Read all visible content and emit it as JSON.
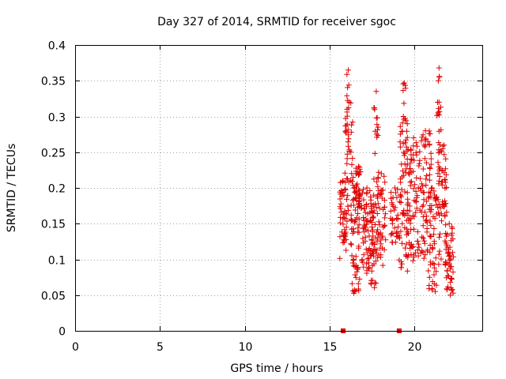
{
  "chart_data": {
    "type": "scatter",
    "title": "Day 327 of 2014, SRMTID for receiver sgoc",
    "xlabel": "GPS time / hours",
    "ylabel": "SRMTID / TECUs",
    "xlim": [
      0,
      24
    ],
    "ylim": [
      0,
      0.4
    ],
    "xticks": [
      0,
      5,
      10,
      15,
      20
    ],
    "xtick_labels": [
      "0",
      "5",
      "10",
      "15",
      "20"
    ],
    "yticks": [
      0,
      0.05,
      0.1,
      0.15,
      0.2,
      0.25,
      0.3,
      0.35,
      0.4
    ],
    "ytick_labels": [
      "0",
      "0.05",
      "0.1",
      "0.15",
      "0.2",
      "0.25",
      "0.3",
      "0.35",
      "0.4"
    ],
    "grid": true,
    "marker": "+",
    "color": "#e00000",
    "zero_markers": [
      {
        "x": 15.8,
        "y": 0
      },
      {
        "x": 19.1,
        "y": 0
      }
    ],
    "series": [
      {
        "name": "SRMTID",
        "clusters": [
          {
            "x_range": [
              15.6,
              16.0
            ],
            "y_min": 0.1,
            "y_max": 0.21,
            "count": 40
          },
          {
            "x_range": [
              15.9,
              16.4
            ],
            "y_min": 0.12,
            "y_max": 0.32,
            "count": 55
          },
          {
            "x_range": [
              16.0,
              16.2
            ],
            "y_min": 0.3,
            "y_max": 0.365,
            "count": 6
          },
          {
            "x_range": [
              16.3,
              16.8
            ],
            "y_min": 0.05,
            "y_max": 0.22,
            "count": 55
          },
          {
            "x_range": [
              16.5,
              16.9
            ],
            "y_min": 0.17,
            "y_max": 0.23,
            "count": 30
          },
          {
            "x_range": [
              16.9,
              17.5
            ],
            "y_min": 0.08,
            "y_max": 0.2,
            "count": 60
          },
          {
            "x_range": [
              17.4,
              17.8
            ],
            "y_min": 0.06,
            "y_max": 0.19,
            "count": 45
          },
          {
            "x_range": [
              17.6,
              17.9
            ],
            "y_min": 0.2,
            "y_max": 0.335,
            "count": 20
          },
          {
            "x_range": [
              17.8,
              18.3
            ],
            "y_min": 0.09,
            "y_max": 0.22,
            "count": 45
          },
          {
            "x_range": [
              18.6,
              19.1
            ],
            "y_min": 0.12,
            "y_max": 0.2,
            "count": 35
          },
          {
            "x_range": [
              19.1,
              19.6
            ],
            "y_min": 0.08,
            "y_max": 0.3,
            "count": 70
          },
          {
            "x_range": [
              19.3,
              19.5
            ],
            "y_min": 0.3,
            "y_max": 0.347,
            "count": 5
          },
          {
            "x_range": [
              19.6,
              20.3
            ],
            "y_min": 0.09,
            "y_max": 0.27,
            "count": 70
          },
          {
            "x_range": [
              20.3,
              21.0
            ],
            "y_min": 0.1,
            "y_max": 0.28,
            "count": 70
          },
          {
            "x_range": [
              20.8,
              21.3
            ],
            "y_min": 0.05,
            "y_max": 0.2,
            "count": 45
          },
          {
            "x_range": [
              21.3,
              21.6
            ],
            "y_min": 0.09,
            "y_max": 0.32,
            "count": 40
          },
          {
            "x_range": [
              21.4,
              21.5
            ],
            "y_min": 0.32,
            "y_max": 0.368,
            "count": 3
          },
          {
            "x_range": [
              21.6,
              21.9
            ],
            "y_min": 0.15,
            "y_max": 0.26,
            "count": 30
          },
          {
            "x_range": [
              21.8,
              22.3
            ],
            "y_min": 0.05,
            "y_max": 0.15,
            "count": 55
          }
        ]
      }
    ]
  }
}
